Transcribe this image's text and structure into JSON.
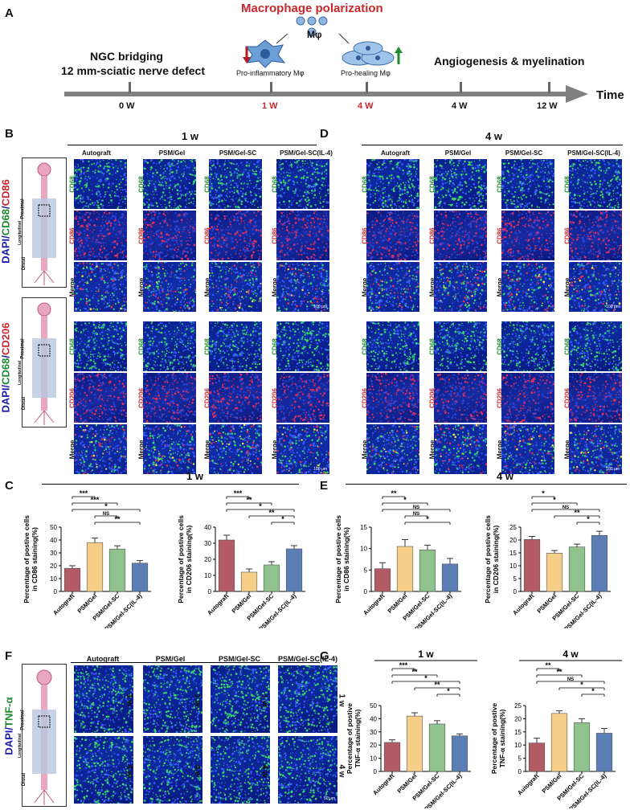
{
  "panels": {
    "A": "A",
    "B": "B",
    "C": "C",
    "D": "D",
    "E": "E",
    "F": "F",
    "G": "G"
  },
  "timeline": {
    "title": "Macrophage polarization",
    "mphi": "Mφ",
    "left_text_1": "NGC bridging",
    "left_text_2": "12 mm-sciatic nerve defect",
    "pro_inflam": "Pro-inflammatory Mφ",
    "pro_heal": "Pro-healing Mφ",
    "angio": "Angiogenesis & myelination",
    "axis_label": "Time",
    "ticks": [
      "0 W",
      "1 W",
      "4 W",
      "4 W",
      "12 W"
    ],
    "colors": {
      "title": "#c8282d",
      "highlight": "#c8282d",
      "up_arrow": "#1d8a2e",
      "down_arrow": "#b21d1d",
      "axis": "#808080"
    }
  },
  "B": {
    "time": "1 w",
    "cols": [
      "Autograft",
      "PSM/Gel",
      "PSM/Gel-SC",
      "PSM/Gel-SC(IL-4)"
    ],
    "stain1": {
      "dapi": "DAPI/",
      "cd68": "CD68",
      "sep": "/",
      "marker": "CD86"
    },
    "stain2": {
      "dapi": "DAPI/",
      "cd68": "CD68",
      "sep": "/",
      "marker": "CD206"
    },
    "rows1": [
      "CD68",
      "CD86",
      "Merge"
    ],
    "rows2": [
      "CD68",
      "CD206",
      "Merge"
    ],
    "schematic": {
      "proximal": "Proximal",
      "longitudinal": "Longitudinal",
      "distal": "Distal"
    },
    "scale": "100 μm"
  },
  "D": {
    "time": "4 w",
    "cols": [
      "Autograft",
      "PSM/Gel",
      "PSM/Gel-SC",
      "PSM/Gel-SC(IL-4)"
    ],
    "rows1": [
      "CD68",
      "CD86",
      "Merge"
    ],
    "rows2": [
      "CD68",
      "CD206",
      "Merge"
    ],
    "scale": "100 μm"
  },
  "C": {
    "time": "1 w"
  },
  "E": {
    "time": "4 w"
  },
  "F": {
    "cols": [
      "Autograft",
      "PSM/Gel",
      "PSM/Gel-SC",
      "PSM/Gel-SC(IL-4)"
    ],
    "stain": {
      "dapi": "DAPI/",
      "marker": "TNF-α"
    },
    "rows": [
      "1 w",
      "4 w"
    ],
    "schematic": {
      "proximal": "Proximal",
      "longitudinal": "Longitudinal",
      "distal": "Distal"
    },
    "scale": "50 μm"
  },
  "chart_data": [
    {
      "id": "C1",
      "type": "bar",
      "title": "1 w",
      "ylabel": "Percentage of postive cells in CD86 staining(%)",
      "categories": [
        "Autograft",
        "PSM/Gel",
        "PSM/Gel-SC",
        "PSM/Gel-SC(IL-4)"
      ],
      "values": [
        18,
        38,
        33,
        22
      ],
      "errors": [
        2,
        3.5,
        2.5,
        2
      ],
      "ylim": [
        0,
        50
      ],
      "yticks": [
        0,
        10,
        20,
        30,
        40,
        50
      ],
      "colors": [
        "#b25b64",
        "#f5cf8a",
        "#8fc28c",
        "#5b7fb5"
      ],
      "sig": [
        {
          "a": 0,
          "b": 1,
          "label": "***"
        },
        {
          "a": 0,
          "b": 2,
          "label": "***"
        },
        {
          "a": 0,
          "b": 3,
          "label": "*"
        },
        {
          "a": 1,
          "b": 2,
          "label": "NS"
        },
        {
          "a": 1,
          "b": 3,
          "label": "**"
        }
      ]
    },
    {
      "id": "C2",
      "type": "bar",
      "title": "1 w",
      "ylabel": "Percentage of postive cells in CD206 staining(%)",
      "categories": [
        "Autograft",
        "PSM/Gel",
        "PSM/Gel-SC",
        "PSM/Gel-SC(IL-4)"
      ],
      "values": [
        32,
        12,
        16.5,
        26.5
      ],
      "errors": [
        3,
        2,
        2,
        2
      ],
      "ylim": [
        0,
        40
      ],
      "yticks": [
        0,
        10,
        20,
        30,
        40
      ],
      "colors": [
        "#b25b64",
        "#f5cf8a",
        "#8fc28c",
        "#5b7fb5"
      ],
      "sig": [
        {
          "a": 0,
          "b": 1,
          "label": "***"
        },
        {
          "a": 0,
          "b": 2,
          "label": "**"
        },
        {
          "a": 0,
          "b": 3,
          "label": "*"
        },
        {
          "a": 1,
          "b": 3,
          "label": "**"
        },
        {
          "a": 2,
          "b": 3,
          "label": "*"
        }
      ]
    },
    {
      "id": "E1",
      "type": "bar",
      "title": "4 w",
      "ylabel": "Percentage of postive cells in CD86 staining(%)",
      "categories": [
        "Autograft",
        "PSM/Gel",
        "PSM/Gel-SC",
        "PSM/Gel-SC(IL-4)"
      ],
      "values": [
        5.3,
        10.5,
        9.7,
        6.4
      ],
      "errors": [
        1.4,
        1.6,
        1.1,
        1.3
      ],
      "ylim": [
        0,
        15
      ],
      "yticks": [
        0,
        5,
        10,
        15
      ],
      "colors": [
        "#b25b64",
        "#f5cf8a",
        "#8fc28c",
        "#5b7fb5"
      ],
      "sig": [
        {
          "a": 0,
          "b": 1,
          "label": "**"
        },
        {
          "a": 0,
          "b": 2,
          "label": "*"
        },
        {
          "a": 0,
          "b": 3,
          "label": "NS"
        },
        {
          "a": 1,
          "b": 2,
          "label": "NS"
        },
        {
          "a": 1,
          "b": 3,
          "label": "*"
        }
      ]
    },
    {
      "id": "E2",
      "type": "bar",
      "title": "4 w",
      "ylabel": "Percentage of postive cells in CD206 staining(%)",
      "categories": [
        "Autograft",
        "PSM/Gel",
        "PSM/Gel-SC",
        "PSM/Gel-SC(IL-4)"
      ],
      "values": [
        20.2,
        14.9,
        17.3,
        21.8
      ],
      "errors": [
        1.2,
        1,
        1.1,
        1.6
      ],
      "ylim": [
        0,
        25
      ],
      "yticks": [
        0,
        5,
        10,
        15,
        20,
        25
      ],
      "colors": [
        "#b25b64",
        "#f5cf8a",
        "#8fc28c",
        "#5b7fb5"
      ],
      "sig": [
        {
          "a": 0,
          "b": 1,
          "label": "*"
        },
        {
          "a": 0,
          "b": 2,
          "label": "*"
        },
        {
          "a": 0,
          "b": 3,
          "label": "NS"
        },
        {
          "a": 1,
          "b": 3,
          "label": "**"
        },
        {
          "a": 2,
          "b": 3,
          "label": "*"
        }
      ]
    },
    {
      "id": "G1",
      "type": "bar",
      "title": "1 w",
      "ylabel": "Percentage of postive TNF-α staining(%)",
      "categories": [
        "Autograft",
        "PSM/Gel",
        "PSM/Gel-SC",
        "PSM/Gel-SC(IL-4)"
      ],
      "values": [
        22,
        42,
        36,
        27
      ],
      "errors": [
        2,
        2.5,
        2.5,
        1.5
      ],
      "ylim": [
        0,
        50
      ],
      "yticks": [
        0,
        10,
        20,
        30,
        40,
        50
      ],
      "colors": [
        "#b25b64",
        "#f5cf8a",
        "#8fc28c",
        "#5b7fb5"
      ],
      "sig": [
        {
          "a": 0,
          "b": 1,
          "label": "***"
        },
        {
          "a": 0,
          "b": 2,
          "label": "**"
        },
        {
          "a": 0,
          "b": 3,
          "label": "*"
        },
        {
          "a": 1,
          "b": 3,
          "label": "**"
        },
        {
          "a": 2,
          "b": 3,
          "label": "*"
        }
      ]
    },
    {
      "id": "G2",
      "type": "bar",
      "title": "4 w",
      "ylabel": "Percentage of postive TNF-α staining(%)",
      "categories": [
        "Autograft",
        "PSM/Gel",
        "PSM/Gel-SC",
        "PSM/Gel-SC(IL-4)"
      ],
      "values": [
        10.8,
        22,
        18.5,
        14.5
      ],
      "errors": [
        1.8,
        1,
        1.5,
        1.8
      ],
      "ylim": [
        0,
        25
      ],
      "yticks": [
        0,
        5,
        10,
        15,
        20,
        25
      ],
      "colors": [
        "#b25b64",
        "#f5cf8a",
        "#8fc28c",
        "#5b7fb5"
      ],
      "sig": [
        {
          "a": 0,
          "b": 1,
          "label": "**"
        },
        {
          "a": 0,
          "b": 2,
          "label": "**"
        },
        {
          "a": 0,
          "b": 3,
          "label": "NS"
        },
        {
          "a": 1,
          "b": 3,
          "label": "*"
        },
        {
          "a": 2,
          "b": 3,
          "label": "*"
        }
      ]
    }
  ]
}
